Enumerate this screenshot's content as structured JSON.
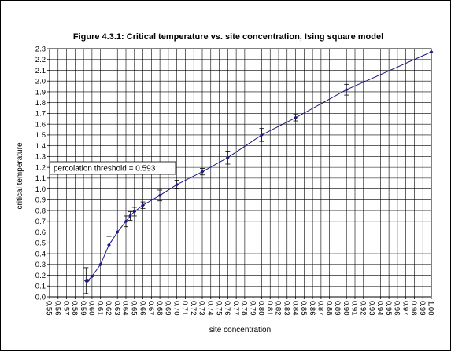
{
  "chart_data": {
    "type": "scatter",
    "title": "Figure 4.3.1:  Critical temperature vs. site concentration, Ising square model",
    "xlabel": "site concentration",
    "ylabel": "critical temperature",
    "xlim": [
      0.55,
      1.0
    ],
    "ylim": [
      0.0,
      2.3
    ],
    "x_ticks": [
      "0.55",
      "0.56",
      "0.57",
      "0.58",
      "0.59",
      "0.60",
      "0.61",
      "0.62",
      "0.63",
      "0.64",
      "0.65",
      "0.66",
      "0.67",
      "0.68",
      "0.69",
      "0.70",
      "0.71",
      "0.72",
      "0.73",
      "0.74",
      "0.75",
      "0.76",
      "0.77",
      "0.78",
      "0.79",
      "0.80",
      "0.81",
      "0.82",
      "0.83",
      "0.84",
      "0.85",
      "0.86",
      "0.87",
      "0.88",
      "0.89",
      "0.90",
      "0.91",
      "0.92",
      "0.93",
      "0.94",
      "0.95",
      "0.96",
      "0.97",
      "0.98",
      "0.99",
      "1.00"
    ],
    "y_ticks": [
      "0.0",
      "0.1",
      "0.2",
      "0.3",
      "0.4",
      "0.5",
      "0.6",
      "0.7",
      "0.8",
      "0.9",
      "1.0",
      "1.1",
      "1.2",
      "1.3",
      "1.4",
      "1.5",
      "1.6",
      "1.7",
      "1.8",
      "1.9",
      "2.0",
      "2.1",
      "2.2",
      "2.3"
    ],
    "grid": true,
    "marker_color": "#1a1a80",
    "line_color": "#1a1a80",
    "points": [
      {
        "x": 0.593,
        "y": 0.15,
        "err": 0.12
      },
      {
        "x": 0.595,
        "y": 0.15,
        "err": 0.0
      },
      {
        "x": 0.6,
        "y": 0.19,
        "err": 0.0
      },
      {
        "x": 0.61,
        "y": 0.3,
        "err": 0.0
      },
      {
        "x": 0.62,
        "y": 0.48,
        "err": 0.08
      },
      {
        "x": 0.63,
        "y": 0.6,
        "err": 0.0
      },
      {
        "x": 0.64,
        "y": 0.7,
        "err": 0.05
      },
      {
        "x": 0.645,
        "y": 0.75,
        "err": 0.04
      },
      {
        "x": 0.65,
        "y": 0.79,
        "err": 0.04
      },
      {
        "x": 0.66,
        "y": 0.85,
        "err": 0.03
      },
      {
        "x": 0.68,
        "y": 0.94,
        "err": 0.05
      },
      {
        "x": 0.7,
        "y": 1.04,
        "err": 0.04
      },
      {
        "x": 0.73,
        "y": 1.16,
        "err": 0.03
      },
      {
        "x": 0.76,
        "y": 1.29,
        "err": 0.06
      },
      {
        "x": 0.8,
        "y": 1.5,
        "err": 0.06
      },
      {
        "x": 0.84,
        "y": 1.66,
        "err": 0.03
      },
      {
        "x": 0.9,
        "y": 1.92,
        "err": 0.05
      },
      {
        "x": 1.0,
        "y": 2.27,
        "err": 0.0
      }
    ],
    "annotation": {
      "text": "percolation threshold = 0.593",
      "x": 0.593,
      "y": 1.37
    }
  }
}
